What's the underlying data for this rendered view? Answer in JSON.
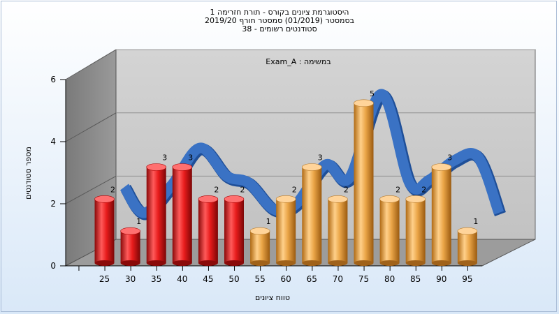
{
  "header": {
    "line1": "היסטוגרמת ציונים בקורס - תורת חזרימה 1",
    "line2": "בסמסטר  (01/2019)  סמסטר חורף 2019/20",
    "line3": "סטודנטים רשומים - 38"
  },
  "chart_data": {
    "type": "bar",
    "title": "Exam_A : במשימה",
    "xlabel": "טווח ציונים",
    "ylabel": "מספר סטודנטים",
    "ylim": [
      0,
      6
    ],
    "yticks": [
      0,
      2,
      4,
      6
    ],
    "grid": true,
    "categories": [
      "25",
      "30",
      "35",
      "40",
      "45",
      "50",
      "55",
      "60",
      "65",
      "70",
      "75",
      "80",
      "85",
      "90",
      "95"
    ],
    "values": [
      2,
      1,
      3,
      3,
      2,
      2,
      1,
      2,
      3,
      2,
      5,
      2,
      2,
      3,
      1
    ],
    "bar_colors": [
      "#e01818",
      "#e01818",
      "#e01818",
      "#e01818",
      "#e01818",
      "#e01818",
      "#e8a445",
      "#e8a445",
      "#e8a445",
      "#e8a445",
      "#e8a445",
      "#e8a445",
      "#e8a445",
      "#e8a445",
      "#e8a445"
    ],
    "curve_color": "#3a72c4"
  }
}
